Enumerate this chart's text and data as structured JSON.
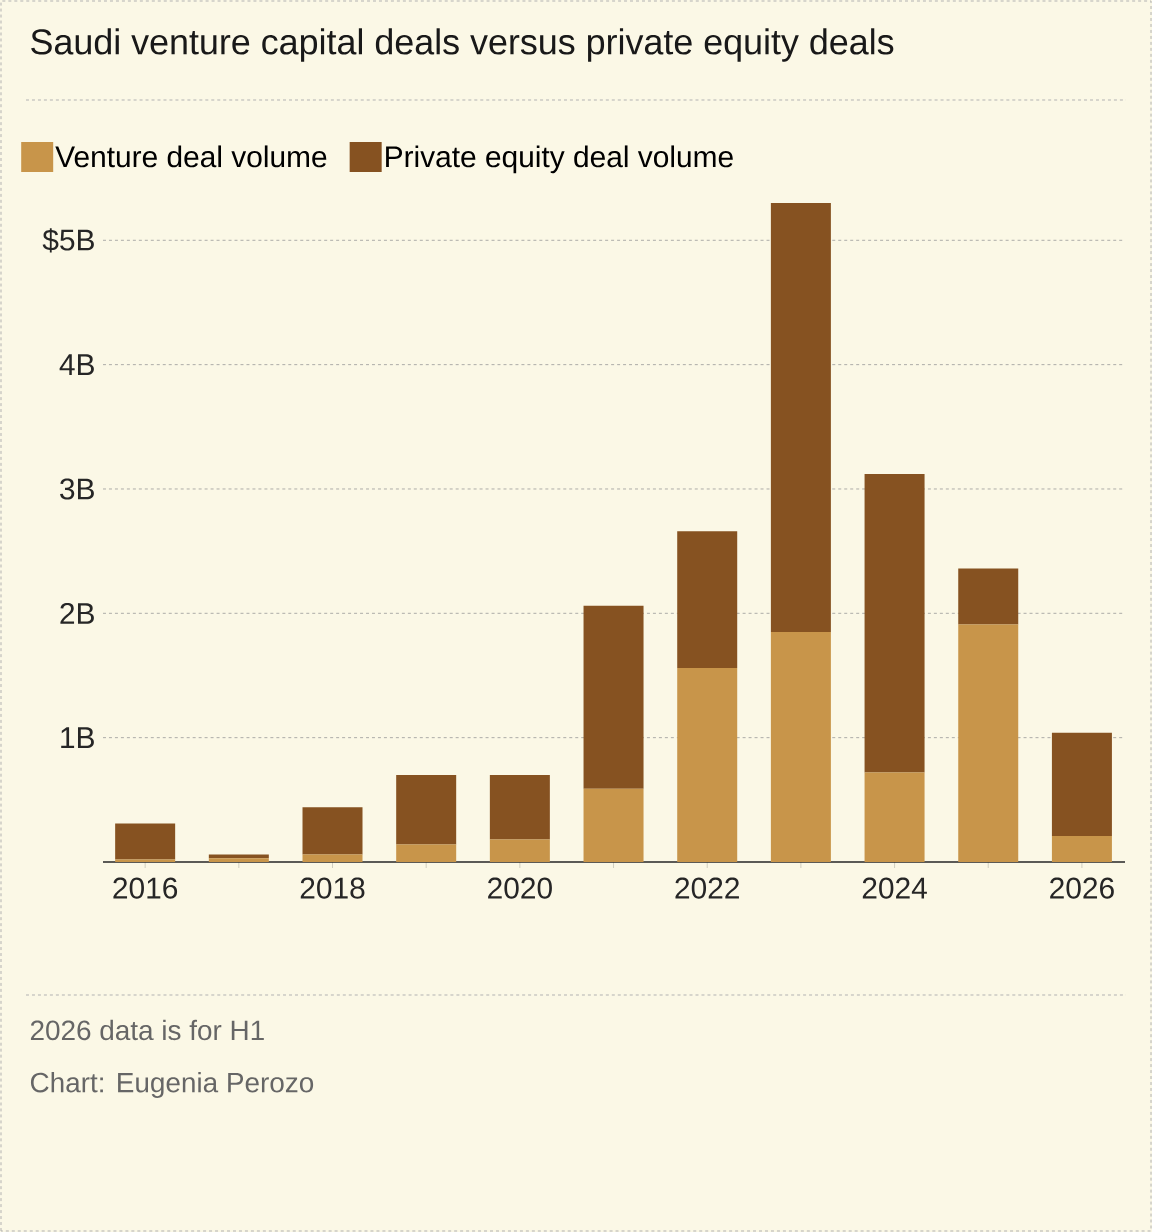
{
  "chart_data": {
    "type": "bar",
    "title": "Saudi venture capital deals versus private equity deals",
    "categories": [
      "2016",
      null,
      "2018",
      null,
      "2020",
      null,
      "2022",
      null,
      "2024",
      null,
      "2026"
    ],
    "series": [
      {
        "name": "Venture deal volume",
        "color": "#c8954a",
        "values": [
          0.02,
          0.03,
          0.06,
          0.14,
          0.18,
          0.59,
          1.56,
          1.85,
          0.72,
          1.91,
          0.21
        ]
      },
      {
        "name": "Private equity deal volume",
        "color": "#865221",
        "values": [
          0.29,
          0.03,
          0.38,
          0.56,
          0.52,
          1.47,
          1.1,
          3.45,
          2.4,
          0.45,
          0.83
        ]
      }
    ],
    "stacked": true,
    "ylim": [
      0,
      5.3
    ],
    "yticks": [
      {
        "value": 1,
        "label": "1B"
      },
      {
        "value": 2,
        "label": "2B"
      },
      {
        "value": 3,
        "label": "3B"
      },
      {
        "value": 4,
        "label": "4B"
      },
      {
        "value": 5,
        "label": "$5B"
      }
    ],
    "grid": "y",
    "legend": "top left",
    "annotations": [
      "2026 data is for H1",
      "Chart: Eugenia Perozo"
    ]
  }
}
